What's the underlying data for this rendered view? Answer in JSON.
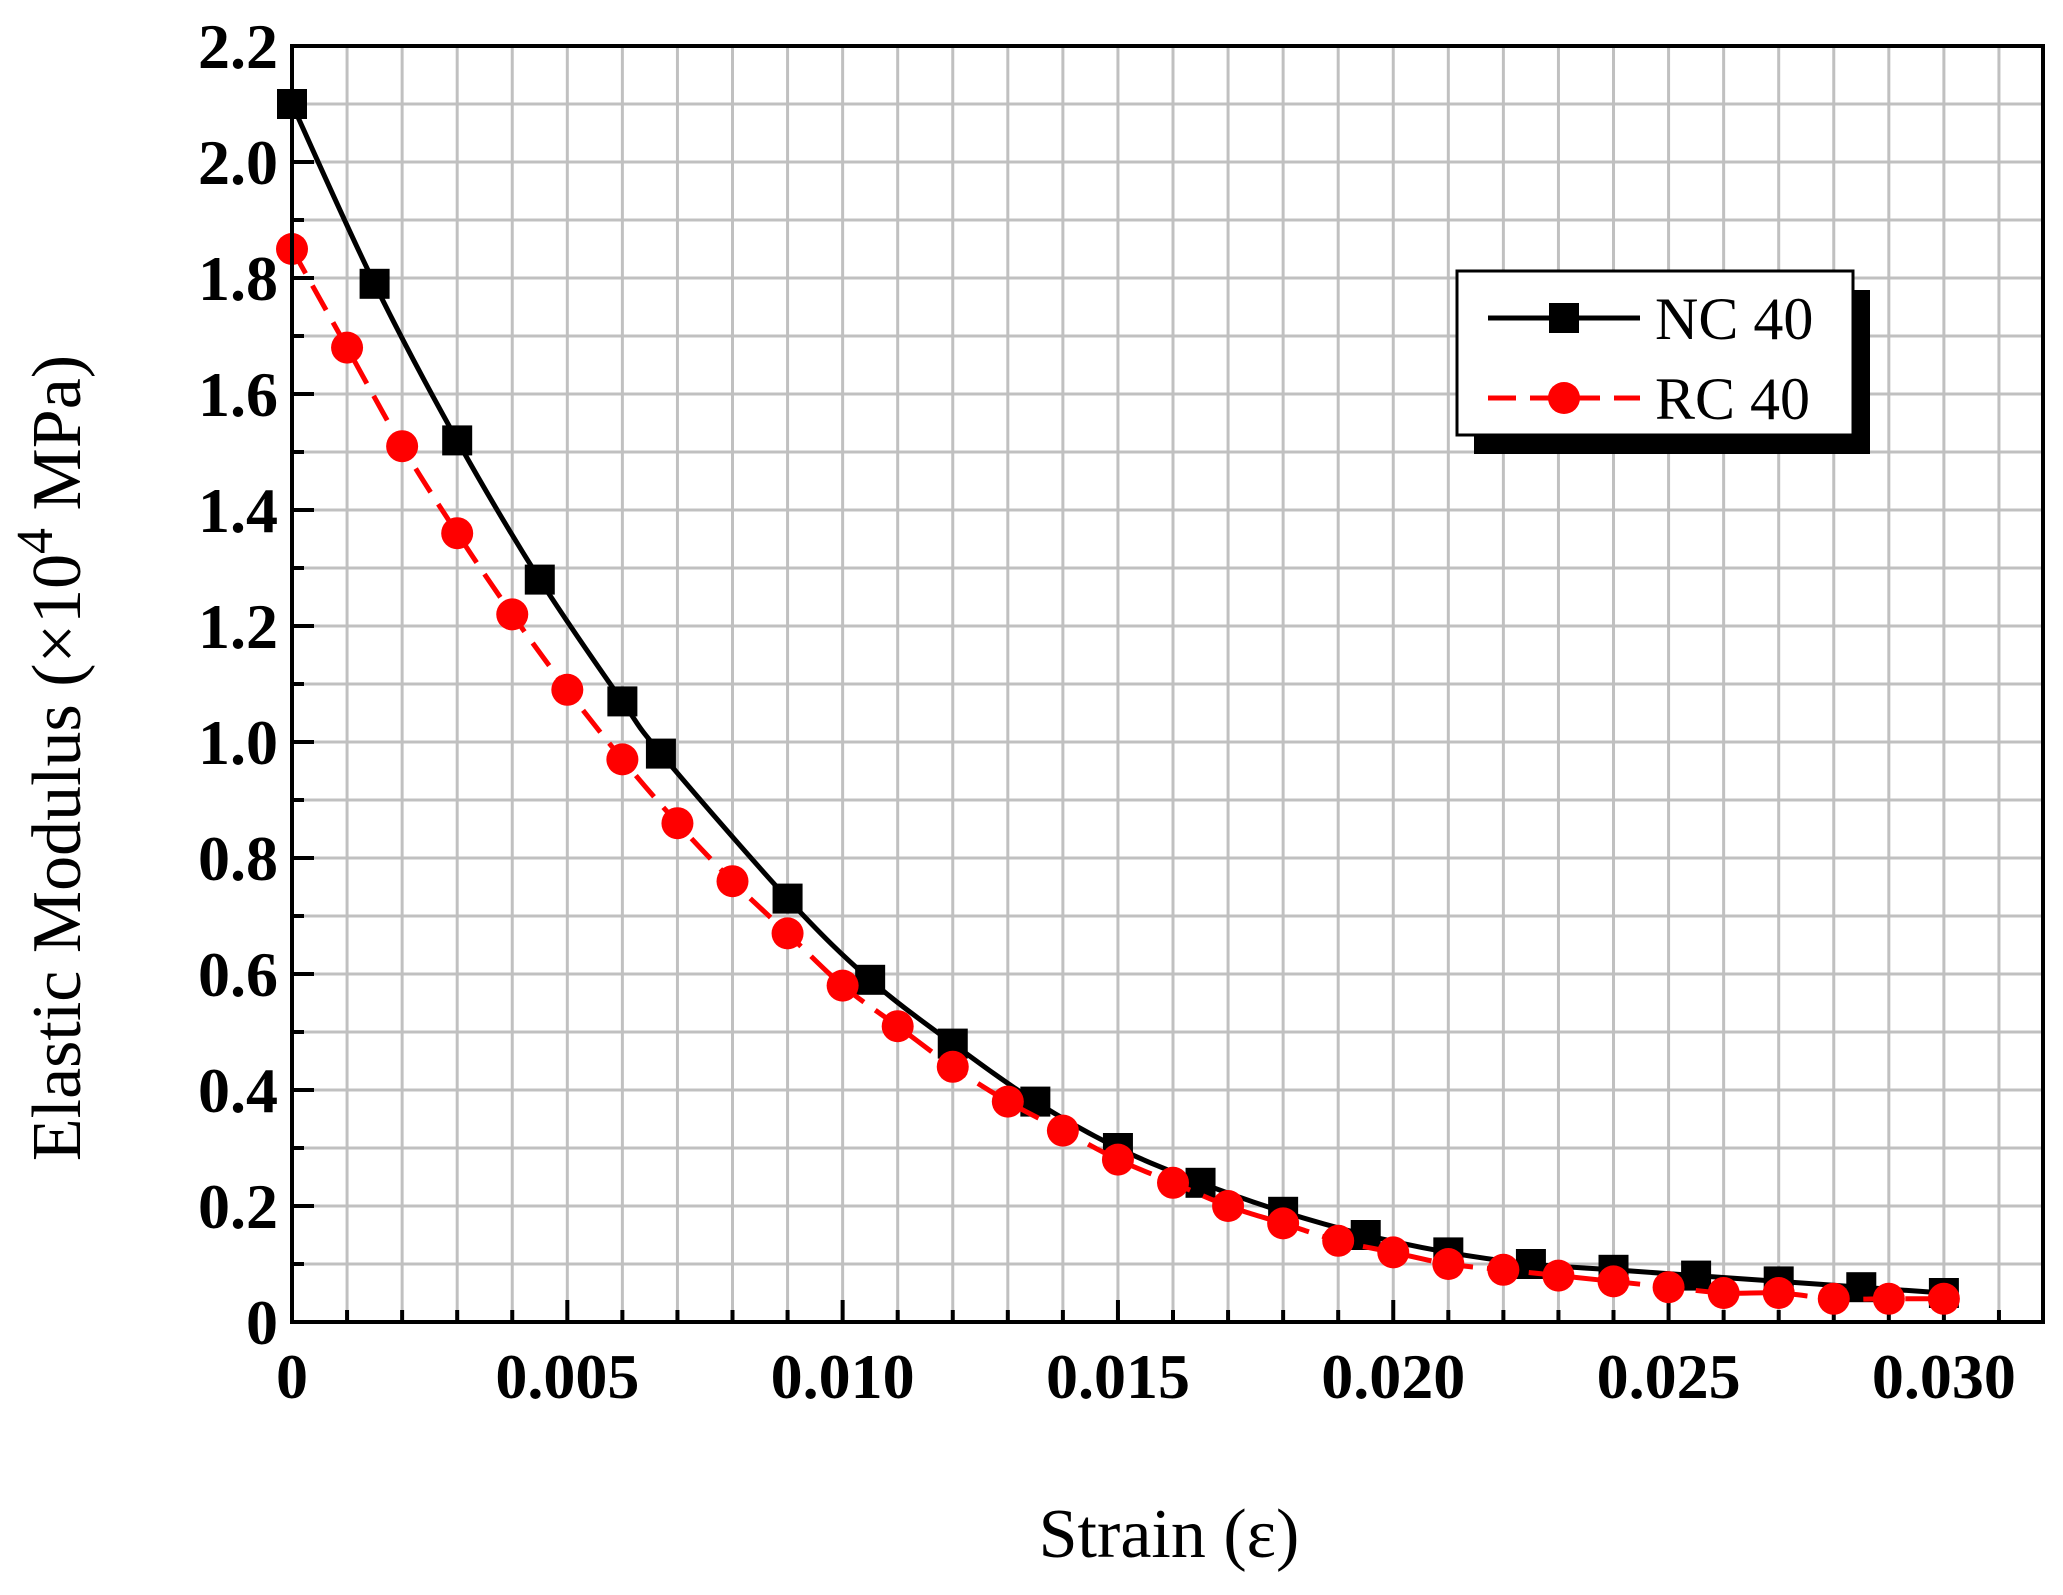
{
  "chart_data": {
    "type": "line",
    "title": "",
    "xlabel": "Strain (ε)",
    "ylabel_prefix": "Elastic Modulus (×10",
    "ylabel_sup": "4",
    "ylabel_suffix": " MPa)",
    "xlim": [
      0,
      0.0318
    ],
    "ylim": [
      0,
      2.2
    ],
    "x_ticks": [
      0,
      0.005,
      0.01,
      0.015,
      0.02,
      0.025,
      0.03
    ],
    "x_tick_labels": [
      "0",
      "0.005",
      "0.010",
      "0.015",
      "0.020",
      "0.025",
      "0.030"
    ],
    "y_ticks": [
      0,
      0.2,
      0.4,
      0.6,
      0.8,
      1.0,
      1.2,
      1.4,
      1.6,
      1.8,
      2.0,
      2.2
    ],
    "y_tick_labels": [
      "0",
      "0.2",
      "0.4",
      "0.6",
      "0.8",
      "1.0",
      "1.2",
      "1.4",
      "1.6",
      "1.8",
      "2.0",
      "2.2"
    ],
    "grid": true,
    "legend_position": "top-right",
    "series": [
      {
        "name": "NC 40",
        "color": "#000000",
        "line_style": "solid",
        "marker": "square",
        "x": [
          0,
          0.0015,
          0.003,
          0.0045,
          0.006,
          0.0067,
          0.009,
          0.0105,
          0.012,
          0.0135,
          0.015,
          0.0165,
          0.018,
          0.0195,
          0.021,
          0.0225,
          0.024,
          0.0255,
          0.027,
          0.0285,
          0.03
        ],
        "y": [
          2.1,
          1.79,
          1.52,
          1.28,
          1.07,
          0.98,
          0.73,
          0.59,
          0.48,
          0.38,
          0.3,
          0.24,
          0.19,
          0.15,
          0.12,
          0.1,
          0.09,
          0.08,
          0.07,
          0.06,
          0.05
        ]
      },
      {
        "name": "RC 40",
        "color": "#ff0000",
        "line_style": "dashed",
        "marker": "circle",
        "x": [
          0,
          0.001,
          0.002,
          0.003,
          0.004,
          0.005,
          0.006,
          0.007,
          0.008,
          0.009,
          0.01,
          0.011,
          0.012,
          0.013,
          0.014,
          0.015,
          0.016,
          0.017,
          0.018,
          0.019,
          0.02,
          0.021,
          0.022,
          0.023,
          0.024,
          0.025,
          0.026,
          0.027,
          0.028,
          0.029,
          0.03
        ],
        "y": [
          1.85,
          1.68,
          1.51,
          1.36,
          1.22,
          1.09,
          0.97,
          0.86,
          0.76,
          0.67,
          0.58,
          0.51,
          0.44,
          0.38,
          0.33,
          0.28,
          0.24,
          0.2,
          0.17,
          0.14,
          0.12,
          0.1,
          0.09,
          0.08,
          0.07,
          0.06,
          0.05,
          0.05,
          0.04,
          0.04,
          0.04
        ]
      }
    ]
  }
}
